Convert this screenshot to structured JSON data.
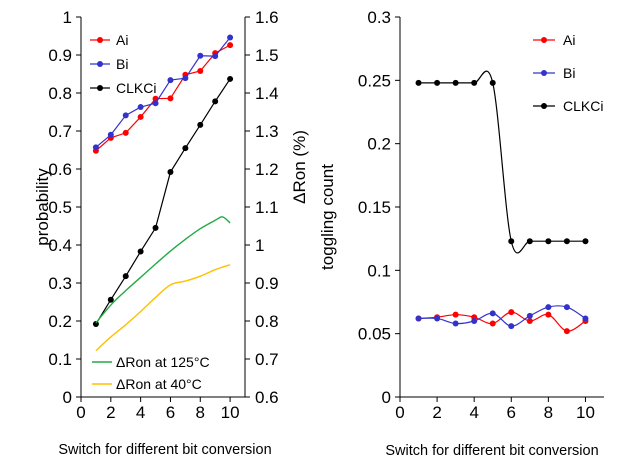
{
  "chart_data": [
    {
      "type": "line",
      "xlabel": "Switch for different bit conversion",
      "ylabel": "probability",
      "y2label": "ΔRon (%)",
      "xlim": [
        0,
        11
      ],
      "ylim": [
        0,
        1
      ],
      "y2lim": [
        0.6,
        1.6
      ],
      "x_ticks": [
        0,
        2,
        4,
        6,
        8,
        10
      ],
      "y_ticks": [
        "0",
        "0.1",
        "0.2",
        "0.3",
        "0.4",
        "0.5",
        "0.6",
        "0.7",
        "0.8",
        "0.9",
        "1"
      ],
      "y2_ticks": [
        "0.6",
        "0.7",
        "0.8",
        "0.9",
        "1",
        "1.1",
        "1.2",
        "1.3",
        "1.4",
        "1.5",
        "1.6"
      ],
      "grid": false,
      "legend_top": "top-left",
      "legend_bottom": "bottom-left",
      "x": [
        1,
        2,
        3,
        4,
        5,
        6,
        7,
        8,
        9,
        10
      ],
      "series": [
        {
          "name": "Ai",
          "axis": "left",
          "color": "#ff0000",
          "marker": true,
          "values": [
            0.648,
            0.682,
            0.695,
            0.737,
            0.785,
            0.786,
            0.848,
            0.858,
            0.905,
            0.926
          ]
        },
        {
          "name": "Bi",
          "axis": "left",
          "color": "#3333cc",
          "marker": true,
          "values": [
            0.657,
            0.69,
            0.741,
            0.763,
            0.773,
            0.834,
            0.839,
            0.898,
            0.897,
            0.946
          ]
        },
        {
          "name": "CLKCi",
          "axis": "left",
          "color": "#000000",
          "marker": true,
          "values": [
            0.192,
            0.256,
            0.318,
            0.383,
            0.445,
            0.592,
            0.655,
            0.716,
            0.778,
            0.837
          ]
        },
        {
          "name": "ΔRon at 125°C",
          "axis": "right",
          "color": "#22aa44",
          "marker": false,
          "x": [
            1,
            2,
            3,
            4,
            5,
            6,
            7,
            8,
            9,
            9.5,
            10
          ],
          "values": [
            0.795,
            0.842,
            0.88,
            0.915,
            0.95,
            0.984,
            1.015,
            1.043,
            1.065,
            1.074,
            1.058
          ]
        },
        {
          "name": "ΔRon at 40°C",
          "axis": "right",
          "color": "#ffc000",
          "marker": false,
          "x": [
            1,
            2,
            3,
            4,
            5,
            6,
            7,
            8,
            9,
            9.5,
            10
          ],
          "values": [
            0.722,
            0.758,
            0.79,
            0.825,
            0.862,
            0.895,
            0.905,
            0.918,
            0.935,
            0.942,
            0.948
          ]
        }
      ]
    },
    {
      "type": "line",
      "xlabel": "Switch for different bit conversion",
      "ylabel": "toggling count",
      "xlim": [
        0,
        11
      ],
      "ylim": [
        0,
        0.3
      ],
      "x_ticks": [
        0,
        2,
        4,
        6,
        8,
        10
      ],
      "y_ticks": [
        "0",
        "0.05",
        "0.1",
        "0.15",
        "0.2",
        "0.25",
        "0.3"
      ],
      "grid": false,
      "legend": "top-right",
      "x": [
        1,
        2,
        3,
        4,
        5,
        6,
        7,
        8,
        9,
        10
      ],
      "series": [
        {
          "name": "Ai",
          "color": "#ff0000",
          "values": [
            0.062,
            0.063,
            0.065,
            0.063,
            0.058,
            0.067,
            0.06,
            0.065,
            0.052,
            0.06
          ]
        },
        {
          "name": "Bi",
          "color": "#3333cc",
          "values": [
            0.062,
            0.062,
            0.058,
            0.06,
            0.066,
            0.056,
            0.064,
            0.071,
            0.071,
            0.062
          ]
        },
        {
          "name": "CLKCi",
          "color": "#000000",
          "values": [
            0.248,
            0.248,
            0.248,
            0.248,
            0.248,
            0.123,
            0.123,
            0.123,
            0.123,
            0.123
          ]
        }
      ]
    }
  ]
}
